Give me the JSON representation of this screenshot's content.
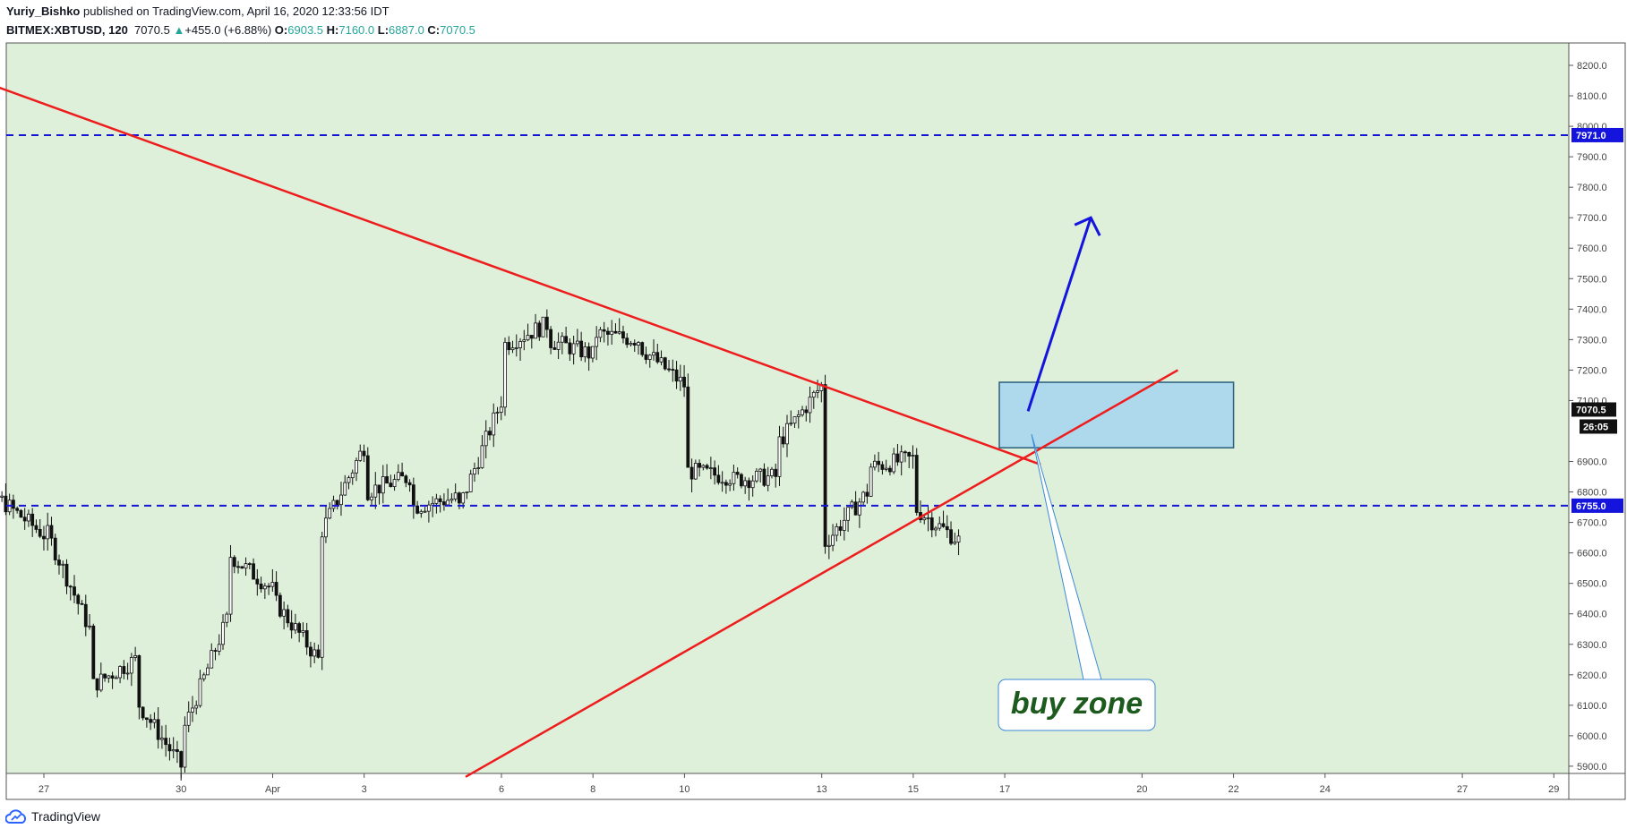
{
  "header": {
    "author": "Yuriy_Bishko",
    "published": "published on TradingView.com, April 16, 2020 12:33:56 IDT",
    "symbol": "BITMEX:XBTUSD, 120",
    "last": "7070.5",
    "change": "+455.0 (+6.88%)",
    "o_label": "O:",
    "o_val": "6903.5",
    "h_label": "H:",
    "h_val": "7160.0",
    "l_label": "L:",
    "l_val": "6887.0",
    "c_label": "C:",
    "c_val": "7070.5"
  },
  "footer": {
    "brand": "TradingView",
    "icon": "tradingview-cloud-icon"
  },
  "colors": {
    "plot_bg": "#deefda",
    "trendline": "#ee1c1c",
    "level": "#1414dd",
    "zone_fill": "#a9d6ee",
    "arrow": "#1414dd",
    "callout_text": "#1d5a1d"
  },
  "chart_data": {
    "type": "candlestick",
    "x_ticks": [
      "27",
      "30",
      "Apr",
      "3",
      "6",
      "8",
      "10",
      "13",
      "15",
      "17",
      "20",
      "22",
      "24",
      "27",
      "29"
    ],
    "y_ticks": [
      "8200.0",
      "8100.0",
      "8000.0",
      "7900.0",
      "7800.0",
      "7700.0",
      "7600.0",
      "7500.0",
      "7400.0",
      "7300.0",
      "7200.0",
      "7100.0",
      "6900.0",
      "6800.0",
      "6700.0",
      "6600.0",
      "6500.0",
      "6400.0",
      "6300.0",
      "6200.0",
      "6100.0",
      "6000.0",
      "5900.0"
    ],
    "ylim": [
      5870,
      8280
    ],
    "current_price_label": "7070.5",
    "countdown_label": "26:05",
    "horizontal_levels": [
      {
        "value": 7971.0,
        "label": "7971.0"
      },
      {
        "value": 6755.0,
        "label": "6755.0"
      }
    ],
    "trendlines": [
      {
        "name": "descending resistance",
        "from": [
          "Mar 25",
          8225
        ],
        "to": [
          "Apr 17",
          6890
        ]
      },
      {
        "name": "ascending support",
        "from": [
          "Apr 6",
          5865
        ],
        "to": [
          "Apr 20",
          7200
        ]
      }
    ],
    "zone": {
      "from": "Apr 16",
      "to": "Apr 22",
      "low": 6945,
      "high": 7160
    },
    "arrow": {
      "from": [
        "Apr 17",
        7065
      ],
      "to": [
        "Apr 18",
        7700
      ]
    },
    "annotation": "buy zone",
    "candle_anchors": [
      [
        "Mar 25",
        6720
      ],
      [
        "Mar 26",
        6780
      ],
      [
        "Mar 27",
        6660
      ],
      [
        "Mar 27",
        6690
      ],
      [
        "Mar 28",
        6350
      ],
      [
        "Mar 28",
        6160
      ],
      [
        "Mar 29",
        6250
      ],
      [
        "Mar 29",
        6120
      ],
      [
        "Mar 30",
        5900
      ],
      [
        "Mar 30",
        6000
      ],
      [
        "Mar 31",
        6380
      ],
      [
        "Mar 31",
        6600
      ],
      [
        "Apr 1",
        6480
      ],
      [
        "Apr 1",
        6450
      ],
      [
        "Apr 2",
        6250
      ],
      [
        "Apr 2",
        6650
      ],
      [
        "Apr 3",
        6950
      ],
      [
        "Apr 3",
        6800
      ],
      [
        "Apr 4",
        6850
      ],
      [
        "Apr 4",
        6750
      ],
      [
        "Apr 5",
        6780
      ],
      [
        "Apr 5",
        6720
      ],
      [
        "Apr 6",
        7100
      ],
      [
        "Apr 6",
        7280
      ],
      [
        "Apr 7",
        7350
      ],
      [
        "Apr 7",
        7300
      ],
      [
        "Apr 8",
        7250
      ],
      [
        "Apr 8",
        7320
      ],
      [
        "Apr 9",
        7300
      ],
      [
        "Apr 9",
        7280
      ],
      [
        "Apr 10",
        7150
      ],
      [
        "Apr 10",
        6870
      ],
      [
        "Apr 11",
        6850
      ],
      [
        "Apr 11",
        6840
      ],
      [
        "Apr 12",
        6850
      ],
      [
        "Apr 12",
        6950
      ],
      [
        "Apr 13",
        7150
      ],
      [
        "Apr 13",
        6700
      ],
      [
        "Apr 13",
        6620
      ],
      [
        "Apr 14",
        6800
      ],
      [
        "Apr 14",
        6880
      ],
      [
        "Apr 15",
        6910
      ],
      [
        "Apr 15",
        6880
      ],
      [
        "Apr 15",
        6750
      ],
      [
        "Apr 16",
        6640
      ],
      [
        "Apr 16",
        7070
      ]
    ]
  }
}
